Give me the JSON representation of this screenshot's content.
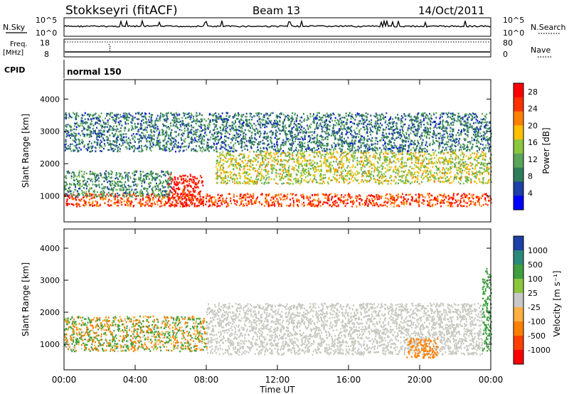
{
  "header": {
    "station": "Stokkseyri (fitACF)",
    "beam": "Beam 13",
    "date": "14/Oct/2011"
  },
  "side_labels": {
    "nsky": "N.Sky",
    "nsearch": "N.Search",
    "freq": "Freq.",
    "freq_unit": "[MHz]",
    "nave": "Nave",
    "cpid": "CPID",
    "cpid_value": "normal 150"
  },
  "colors": {
    "ground_scatter": "#c8c8c0",
    "power_scale": [
      "#0000ff",
      "#1d3fa6",
      "#2e7d5b",
      "#5aa55a",
      "#8cc63f",
      "#ffc000",
      "#ff8000",
      "#ff3000",
      "#ff0000"
    ],
    "velocity_scale": [
      "#ff0000",
      "#ff4000",
      "#ff8000",
      "#ffb040",
      "#c8c8c8",
      "#8cc63f",
      "#3f9f3f",
      "#2a8a7a",
      "#1d3fa6"
    ]
  },
  "chart_data": [
    {
      "type": "line",
      "panel": "noise",
      "series": [
        {
          "name": "N.Sky"
        },
        {
          "name": "N.Search"
        }
      ],
      "y_tick_labels_left": [
        "10^5",
        "10^0"
      ],
      "y_tick_labels_right": [
        "10^5",
        "10^0"
      ]
    },
    {
      "type": "line",
      "panel": "frequency_nave",
      "y_tick_labels_left": [
        "18",
        "8"
      ],
      "y_tick_labels_right": [
        "80",
        "0"
      ],
      "series": [
        {
          "name": "Freq."
        },
        {
          "name": "Nave"
        }
      ]
    },
    {
      "type": "heatmap",
      "panel": "power",
      "ylabel": "Slant Range [km]",
      "yticks": [
        "1000",
        "2000",
        "3000",
        "4000"
      ],
      "ylim": [
        200,
        4600
      ],
      "xlim": [
        0,
        24
      ],
      "colorbar": {
        "label": "Power [dB]",
        "ticks": [
          "4",
          "8",
          "12",
          "16",
          "20",
          "24",
          "28"
        ],
        "range": [
          0,
          30
        ]
      },
      "bands": [
        {
          "x": [
            0,
            24
          ],
          "range_km": [
            700,
            1100
          ],
          "level_db": 25
        },
        {
          "x": [
            5.8,
            7.8
          ],
          "range_km": [
            700,
            1700
          ],
          "level_db": 28
        },
        {
          "x": [
            8.5,
            24
          ],
          "range_km": [
            1400,
            2400
          ],
          "level_db": 16
        },
        {
          "x": [
            0,
            6
          ],
          "range_km": [
            1000,
            1800
          ],
          "level_db": 10
        },
        {
          "x": [
            0,
            24
          ],
          "range_km": [
            2400,
            3600
          ],
          "level_db": 8
        }
      ]
    },
    {
      "type": "heatmap",
      "panel": "velocity",
      "ylabel": "Slant Range [km]",
      "xlabel": "Time UT",
      "xticks": [
        "00:00",
        "04:00",
        "08:00",
        "12:00",
        "16:00",
        "20:00",
        "00:00"
      ],
      "yticks": [
        "1000",
        "2000",
        "3000",
        "4000"
      ],
      "ylim": [
        200,
        4600
      ],
      "xlim": [
        0,
        24
      ],
      "colorbar": {
        "label": "Velocity [m s⁻¹]",
        "ticks": [
          "1000",
          "500",
          "100",
          "25",
          "-25",
          "-100",
          "-500",
          "-1000"
        ]
      },
      "bands": [
        {
          "x": [
            0,
            8
          ],
          "range_km": [
            800,
            1900
          ],
          "class": "mixed"
        },
        {
          "x": [
            8,
            23.5
          ],
          "range_km": [
            700,
            2300
          ],
          "class": "ground_scatter"
        },
        {
          "x": [
            19.2,
            21
          ],
          "range_km": [
            600,
            1200
          ],
          "velocity": -300
        },
        {
          "x": [
            23.5,
            24
          ],
          "range_km": [
            800,
            3400
          ],
          "velocity": 300
        }
      ]
    }
  ]
}
